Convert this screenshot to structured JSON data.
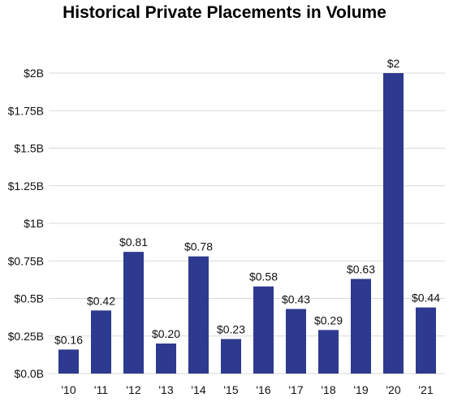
{
  "chart_data": {
    "type": "bar",
    "title": "Historical Private Placements in Volume",
    "xlabel": "",
    "ylabel": "",
    "categories": [
      "'10",
      "'11",
      "'12",
      "'13",
      "'14",
      "'15",
      "'16",
      "'17",
      "'18",
      "'19",
      "'20",
      "'21"
    ],
    "values": [
      0.16,
      0.42,
      0.81,
      0.2,
      0.78,
      0.23,
      0.58,
      0.43,
      0.29,
      0.63,
      2.0,
      0.44
    ],
    "data_labels": [
      "$0.16",
      "$0.42",
      "$0.81",
      "$0.20",
      "$0.78",
      "$0.23",
      "$0.58",
      "$0.43",
      "$0.29",
      "$0.63",
      "$2",
      "$0.44"
    ],
    "ylim": [
      0,
      2
    ],
    "yticks": [
      0,
      0.25,
      0.5,
      0.75,
      1,
      1.25,
      1.5,
      1.75,
      2
    ],
    "ytick_labels": [
      "$0.0B",
      "$0.25B",
      "$0.5B",
      "$0.75B",
      "$1B",
      "$1.25B",
      "$1.5B",
      "$1.75B",
      "$2B"
    ],
    "grid": true,
    "legend": "none",
    "bar_color": "#2e3a8f",
    "grid_color": "#d9d9d9"
  }
}
